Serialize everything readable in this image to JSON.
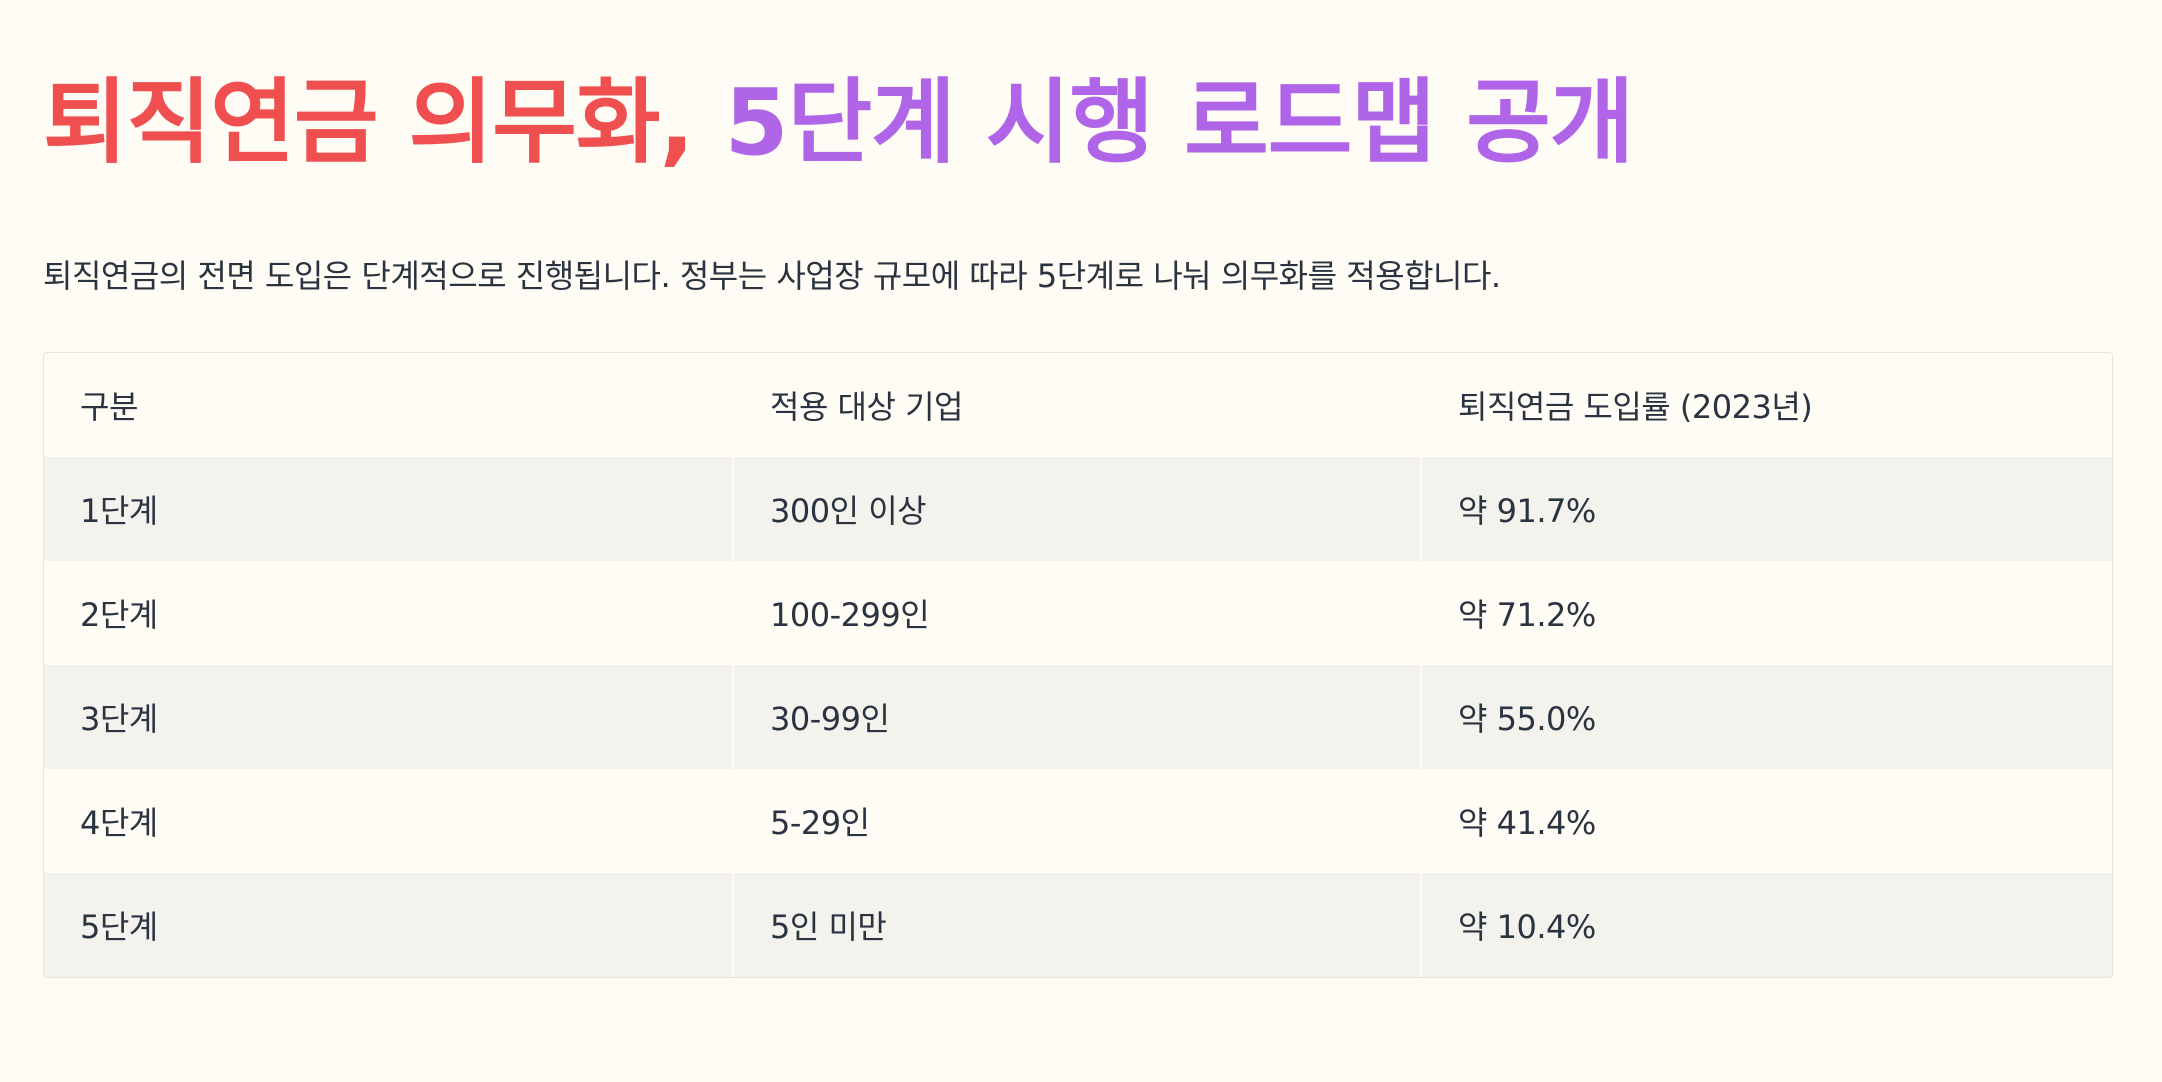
{
  "title": {
    "part_a": "퇴직연금 의무화,",
    "part_b": "5단계 시행 로드맵 공개"
  },
  "intro": "퇴직연금의 전면 도입은 단계적으로 진행됩니다. 정부는 사업장 규모에 따라 5단계로 나눠 의무화를 적용합니다.",
  "colors": {
    "title_red": "#ef4f4f",
    "title_purple": "#b065e8",
    "background": "#fffcf5",
    "stripe": "#f3f2ed"
  },
  "table": {
    "headers": [
      "구분",
      "적용 대상 기업",
      "퇴직연금 도입률 (2023년)"
    ],
    "rows": [
      [
        "1단계",
        "300인 이상",
        "약 91.7%"
      ],
      [
        "2단계",
        "100-299인",
        "약 71.2%"
      ],
      [
        "3단계",
        "30-99인",
        "약 55.0%"
      ],
      [
        "4단계",
        "5-29인",
        "약 41.4%"
      ],
      [
        "5단계",
        "5인 미만",
        "약 10.4%"
      ]
    ]
  }
}
